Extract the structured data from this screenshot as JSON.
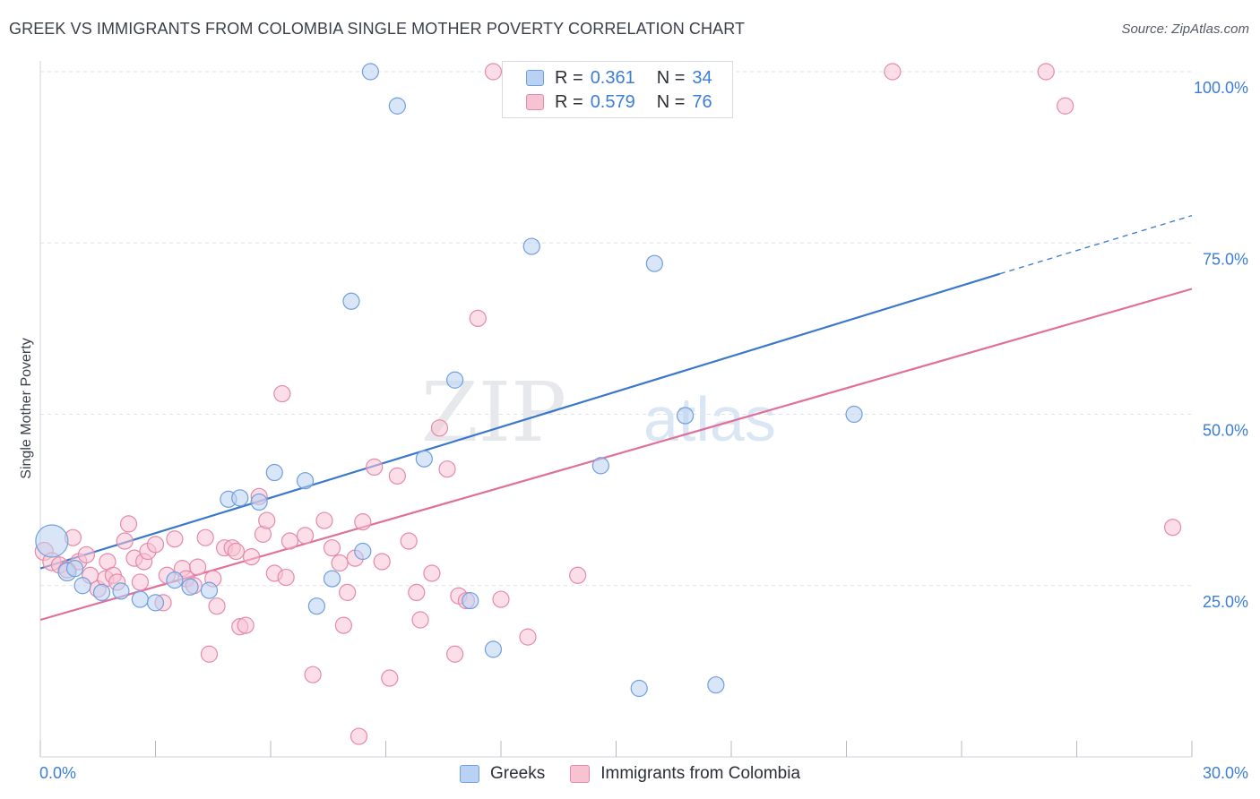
{
  "title": "GREEK VS IMMIGRANTS FROM COLOMBIA SINGLE MOTHER POVERTY CORRELATION CHART",
  "source": "Source: ZipAtlas.com",
  "watermark": {
    "zip": "ZIP",
    "atlas": "atlas"
  },
  "legend": {
    "greeks": {
      "r_label": "R =",
      "r_value": "0.361",
      "n_label": "N =",
      "n_value": "34"
    },
    "colombia": {
      "r_label": "R =",
      "r_value": "0.579",
      "n_label": "N =",
      "n_value": "76"
    }
  },
  "colors": {
    "greeks_fill": "#b9d2f3",
    "greeks_stroke": "#6f9fde",
    "greeks_line": "#3a78cc",
    "colombia_fill": "#f7c3d3",
    "colombia_stroke": "#e58aa8",
    "colombia_line": "#e0709a",
    "tick_label": "#3b7dd8",
    "grid": "#dfe2e7"
  },
  "chart_data": {
    "type": "scatter",
    "title": "GREEK VS IMMIGRANTS FROM COLOMBIA SINGLE MOTHER POVERTY CORRELATION CHART",
    "xlabel": "",
    "ylabel": "Single Mother Poverty",
    "xlim": [
      0,
      30
    ],
    "ylim": [
      0,
      100
    ],
    "x_tick_labels": [
      "0.0%",
      "30.0%"
    ],
    "y_ticks": [
      25,
      50,
      75,
      100
    ],
    "y_tick_labels": [
      "25.0%",
      "50.0%",
      "75.0%",
      "100.0%"
    ],
    "grid": "horizontal dashed",
    "legend_position": "top-center",
    "series": [
      {
        "name": "Greeks",
        "r": 0.361,
        "n": 34,
        "trend": {
          "x0": 0,
          "y0": 27.5,
          "x1": 25.0,
          "y1": 70.5,
          "dashed_to_x": 30,
          "dashed_to_y": 79.0
        },
        "points": [
          [
            0.3,
            31.5,
            18
          ],
          [
            0.7,
            27.0,
            10
          ],
          [
            1.1,
            25.0,
            9
          ],
          [
            1.6,
            24.0,
            9
          ],
          [
            2.1,
            24.2,
            9
          ],
          [
            2.6,
            23.0,
            9
          ],
          [
            3.0,
            22.5,
            9
          ],
          [
            3.5,
            25.8,
            9
          ],
          [
            3.9,
            24.8,
            9
          ],
          [
            4.4,
            24.3,
            9
          ],
          [
            4.9,
            37.6,
            9
          ],
          [
            5.2,
            37.8,
            9
          ],
          [
            5.7,
            37.2,
            9
          ],
          [
            6.1,
            41.5,
            9
          ],
          [
            6.9,
            40.3,
            9
          ],
          [
            7.2,
            22.0,
            9
          ],
          [
            7.6,
            26.0,
            9
          ],
          [
            8.1,
            66.5,
            9
          ],
          [
            8.4,
            30.0,
            9
          ],
          [
            8.6,
            100.0,
            9
          ],
          [
            9.3,
            95.0,
            9
          ],
          [
            10.0,
            43.5,
            9
          ],
          [
            10.8,
            55.0,
            9
          ],
          [
            11.2,
            22.8,
            9
          ],
          [
            11.8,
            15.7,
            9
          ],
          [
            12.8,
            74.5,
            9
          ],
          [
            14.4,
            100.0,
            9
          ],
          [
            14.6,
            42.5,
            9
          ],
          [
            15.6,
            10.0,
            9
          ],
          [
            16.0,
            72.0,
            9
          ],
          [
            16.8,
            49.8,
            9
          ],
          [
            17.6,
            10.5,
            9
          ],
          [
            21.2,
            50.0,
            9
          ],
          [
            0.9,
            27.5,
            9
          ]
        ]
      },
      {
        "name": "Immigrants from Colombia",
        "r": 0.579,
        "n": 76,
        "trend": {
          "x0": 0,
          "y0": 20.0,
          "x1": 30,
          "y1": 68.3
        },
        "points": [
          [
            0.1,
            30.0,
            10
          ],
          [
            0.3,
            28.5,
            10
          ],
          [
            0.5,
            28.0,
            9
          ],
          [
            0.7,
            27.3,
            9
          ],
          [
            0.85,
            32.0,
            9
          ],
          [
            1.0,
            28.5,
            9
          ],
          [
            1.2,
            29.5,
            9
          ],
          [
            1.3,
            26.5,
            9
          ],
          [
            1.5,
            24.5,
            9
          ],
          [
            1.7,
            26.0,
            9
          ],
          [
            1.75,
            28.5,
            9
          ],
          [
            1.9,
            26.5,
            9
          ],
          [
            2.0,
            25.5,
            9
          ],
          [
            2.2,
            31.5,
            9
          ],
          [
            2.3,
            34.0,
            9
          ],
          [
            2.45,
            29.0,
            9
          ],
          [
            2.6,
            25.5,
            9
          ],
          [
            2.7,
            28.5,
            9
          ],
          [
            2.8,
            30.0,
            9
          ],
          [
            3.0,
            31.0,
            9
          ],
          [
            3.2,
            22.5,
            9
          ],
          [
            3.3,
            26.5,
            9
          ],
          [
            3.5,
            31.8,
            9
          ],
          [
            3.7,
            27.5,
            9
          ],
          [
            3.8,
            26.0,
            9
          ],
          [
            4.0,
            25.0,
            9
          ],
          [
            4.1,
            27.7,
            9
          ],
          [
            4.3,
            32.0,
            9
          ],
          [
            4.4,
            15.0,
            9
          ],
          [
            4.5,
            26.0,
            9
          ],
          [
            4.6,
            22.0,
            9
          ],
          [
            4.8,
            30.5,
            9
          ],
          [
            5.0,
            30.5,
            9
          ],
          [
            5.1,
            30.0,
            9
          ],
          [
            5.2,
            19.0,
            9
          ],
          [
            5.35,
            19.2,
            9
          ],
          [
            5.5,
            29.2,
            9
          ],
          [
            5.7,
            38.0,
            9
          ],
          [
            5.8,
            32.5,
            9
          ],
          [
            5.9,
            34.5,
            9
          ],
          [
            6.1,
            26.8,
            9
          ],
          [
            6.3,
            53.0,
            9
          ],
          [
            6.4,
            26.2,
            9
          ],
          [
            6.5,
            31.5,
            9
          ],
          [
            6.9,
            32.3,
            9
          ],
          [
            7.1,
            12.0,
            9
          ],
          [
            7.4,
            34.5,
            9
          ],
          [
            7.6,
            30.5,
            9
          ],
          [
            7.8,
            28.3,
            9
          ],
          [
            7.9,
            19.2,
            9
          ],
          [
            8.0,
            24.0,
            9
          ],
          [
            8.2,
            29.0,
            9
          ],
          [
            8.3,
            3.0,
            9
          ],
          [
            8.4,
            34.3,
            9
          ],
          [
            8.7,
            42.3,
            9
          ],
          [
            8.9,
            28.5,
            9
          ],
          [
            9.1,
            11.5,
            9
          ],
          [
            9.3,
            41.0,
            9
          ],
          [
            9.6,
            31.5,
            9
          ],
          [
            9.8,
            24.0,
            9
          ],
          [
            9.9,
            20.0,
            9
          ],
          [
            10.2,
            26.8,
            9
          ],
          [
            10.4,
            48.0,
            9
          ],
          [
            10.6,
            42.0,
            9
          ],
          [
            10.8,
            15.0,
            9
          ],
          [
            10.9,
            23.5,
            9
          ],
          [
            11.1,
            22.8,
            9
          ],
          [
            11.4,
            64.0,
            9
          ],
          [
            11.8,
            100.0,
            9
          ],
          [
            12.0,
            23.0,
            9
          ],
          [
            12.7,
            17.5,
            9
          ],
          [
            14.0,
            26.5,
            9
          ],
          [
            22.2,
            100.0,
            9
          ],
          [
            26.2,
            100.0,
            9
          ],
          [
            26.7,
            95.0,
            9
          ],
          [
            29.5,
            33.5,
            9
          ]
        ]
      }
    ]
  }
}
